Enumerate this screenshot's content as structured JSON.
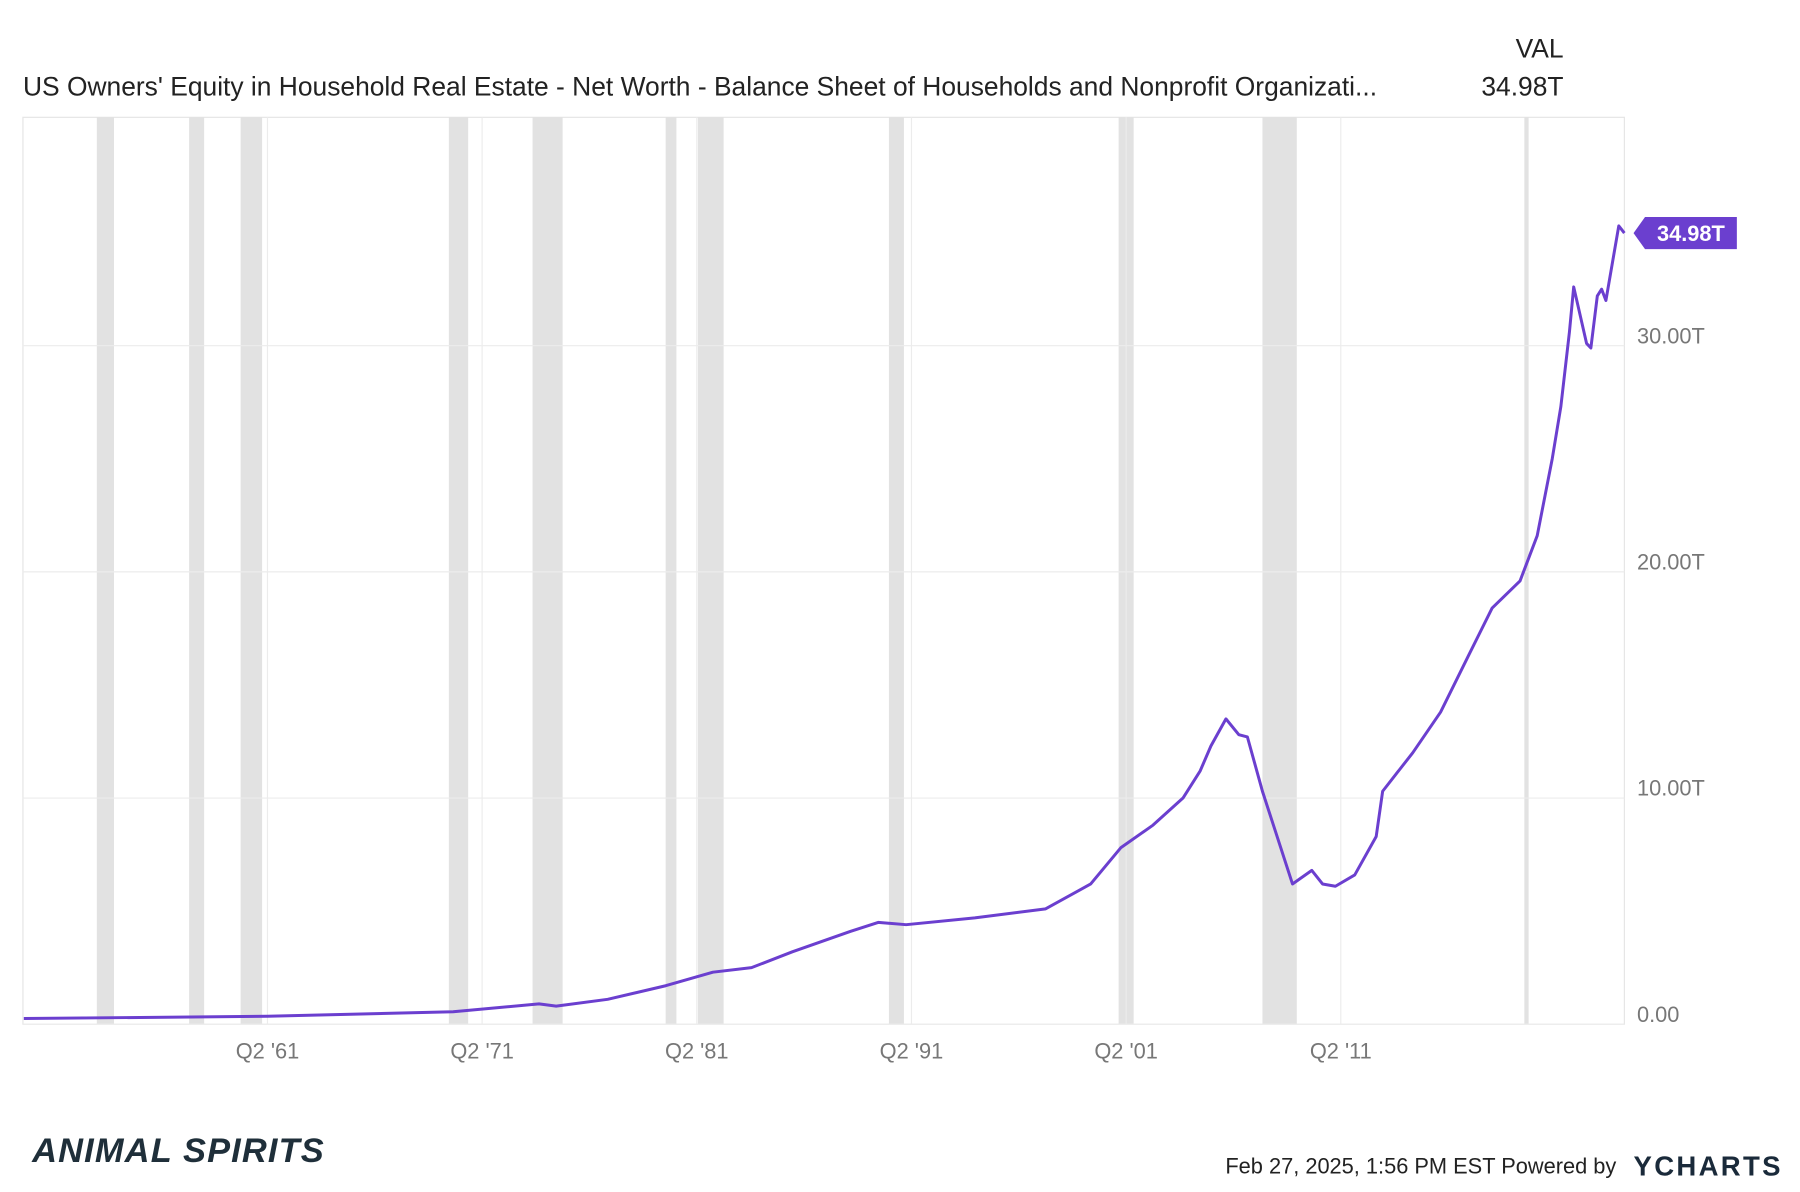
{
  "chart_data": {
    "type": "line",
    "header_column": "VAL",
    "header_value": "34.98T",
    "end_label": "34.98T",
    "x": [
      1949.9,
      1961.25,
      1969.9,
      1973.9,
      1974.7,
      1977.1,
      1979.8,
      1980.9,
      1982.0,
      1983.8,
      1985.7,
      1988.4,
      1989.7,
      1991.0,
      1994.2,
      1997.5,
      1999.6,
      2001.0,
      2002.5,
      2003.9,
      2004.7,
      2005.2,
      2005.9,
      2006.5,
      2006.9,
      2007.6,
      2009.0,
      2009.9,
      2010.4,
      2011.0,
      2011.9,
      2012.9,
      2013.2,
      2014.6,
      2015.9,
      2017.2,
      2018.3,
      2019.6,
      2020.4,
      2021.1,
      2021.5,
      2021.9,
      2022.1,
      2022.7,
      2022.9,
      2023.2,
      2023.4,
      2023.6,
      2024.2,
      2024.46
    ],
    "series": [
      {
        "name": "US Owners' Equity in Household Real Estate - Net Worth - Balance Sheet of Households and Nonprofit Organizati...",
        "color": "#6b3fcf",
        "values": [
          0.25,
          0.35,
          0.55,
          0.9,
          0.8,
          1.1,
          1.7,
          2.0,
          2.3,
          2.5,
          3.2,
          4.1,
          4.5,
          4.4,
          4.7,
          5.1,
          6.2,
          7.8,
          8.8,
          10.0,
          11.2,
          12.3,
          13.5,
          12.8,
          12.7,
          10.3,
          6.2,
          6.8,
          6.2,
          6.1,
          6.6,
          8.3,
          10.3,
          12.0,
          13.8,
          16.3,
          18.4,
          19.6,
          21.6,
          25.0,
          27.3,
          30.6,
          32.6,
          30.1,
          29.9,
          32.2,
          32.5,
          32.0,
          35.3,
          34.98
        ]
      }
    ],
    "recessions": [
      [
        1953.3,
        1954.1
      ],
      [
        1957.6,
        1958.3
      ],
      [
        1960.0,
        1961.0
      ],
      [
        1969.7,
        1970.6
      ],
      [
        1973.6,
        1975.0
      ],
      [
        1979.8,
        1980.3
      ],
      [
        1981.3,
        1982.5
      ],
      [
        1990.2,
        1990.9
      ],
      [
        2000.9,
        2001.6
      ],
      [
        2007.6,
        2009.2
      ],
      [
        2019.8,
        2020.0
      ]
    ],
    "recession_color": "#e2e2e2",
    "xlim": [
      1949.86,
      2024.46
    ],
    "xticks": [
      {
        "value": 1961.25,
        "label": "Q2 '61"
      },
      {
        "value": 1971.25,
        "label": "Q2 '71"
      },
      {
        "value": 1981.25,
        "label": "Q2 '81"
      },
      {
        "value": 1991.25,
        "label": "Q2 '91"
      },
      {
        "value": 2001.25,
        "label": "Q2 '01"
      },
      {
        "value": 2011.25,
        "label": "Q2 '11"
      }
    ],
    "ylim": [
      0,
      40.1
    ],
    "yticks": [
      {
        "value": 0,
        "label": "0.00"
      },
      {
        "value": 10,
        "label": "10.00T"
      },
      {
        "value": 20,
        "label": "20.00T"
      },
      {
        "value": 30,
        "label": "30.00T"
      }
    ],
    "grid": true,
    "timestamp": "Feb 27, 2025, 1:56 PM EST Powered by",
    "brand": "YCHARTS",
    "watermark": "ANIMAL SPIRITS"
  }
}
